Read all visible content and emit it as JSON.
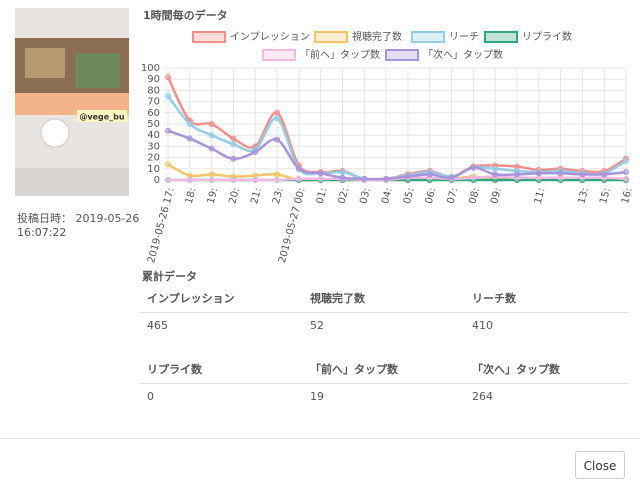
{
  "thumbnail": {
    "caption": "@vege_bu"
  },
  "post": {
    "label": "投稿日時：",
    "date": "2019-05-26",
    "time": "16:07:22"
  },
  "chart_data": {
    "type": "line",
    "title": "1時間毎のデータ",
    "categories": [
      "2019-05-26 17:",
      "18:",
      "19:",
      "20:",
      "21:",
      "23:",
      "2019-05-27 00:",
      "01:",
      "02:",
      "03:",
      "04:",
      "05:",
      "06:",
      "07:",
      "08:",
      "09:",
      null,
      "11:",
      null,
      "13:",
      "15:",
      "16:"
    ],
    "series": [
      {
        "name": "インプレッション",
        "color": "#f08f8c",
        "values": [
          92,
          53,
          50,
          37,
          30,
          60,
          13,
          7,
          8,
          1,
          1,
          5,
          8,
          3,
          12,
          13,
          12,
          9,
          10,
          8,
          8,
          19
        ]
      },
      {
        "name": "視聴完了数",
        "color": "#f2c46a",
        "values": [
          14,
          4,
          5,
          3,
          4,
          5,
          0,
          0,
          0,
          0,
          0,
          0,
          1,
          1,
          3,
          1,
          2,
          2,
          2,
          1,
          1,
          0
        ]
      },
      {
        "name": "リーチ",
        "color": "#93cde6",
        "values": [
          75,
          50,
          40,
          32,
          27,
          55,
          10,
          6,
          7,
          1,
          1,
          4,
          7,
          3,
          11,
          10,
          8,
          7,
          8,
          6,
          6,
          17
        ]
      },
      {
        "name": "リプライ数",
        "color": "#2fa77f",
        "values": [
          0,
          0,
          0,
          0,
          0,
          0,
          0,
          0,
          0,
          0,
          0,
          0,
          0,
          0,
          0,
          0,
          0,
          0,
          0,
          0,
          0,
          0
        ]
      },
      {
        "name": "「前へ」タップ数",
        "color": "#f2b9e2",
        "values": [
          0,
          0,
          0,
          0,
          0,
          0,
          1,
          1,
          1,
          0,
          0,
          2,
          2,
          1,
          2,
          3,
          2,
          2,
          2,
          2,
          2,
          1
        ]
      },
      {
        "name": "「次へ」タップ数",
        "color": "#a894d8",
        "values": [
          44,
          37,
          28,
          19,
          25,
          36,
          10,
          6,
          2,
          1,
          1,
          3,
          5,
          2,
          11,
          5,
          5,
          6,
          6,
          5,
          5,
          7
        ]
      }
    ],
    "ylim": [
      0,
      100
    ],
    "yticks": [
      0,
      10,
      20,
      30,
      40,
      50,
      60,
      70,
      80,
      90,
      100
    ],
    "grid": true,
    "legend": "top"
  },
  "totals": {
    "title": "累計データ",
    "rows": [
      [
        {
          "label": "インプレッション",
          "value": "465"
        },
        {
          "label": "視聴完了数",
          "value": "52"
        },
        {
          "label": "リーチ数",
          "value": "410"
        }
      ],
      [
        {
          "label": "リプライ数",
          "value": "0"
        },
        {
          "label": "「前へ」タップ数",
          "value": "19"
        },
        {
          "label": "「次へ」タップ数",
          "value": "264"
        }
      ]
    ]
  },
  "close": "Close"
}
